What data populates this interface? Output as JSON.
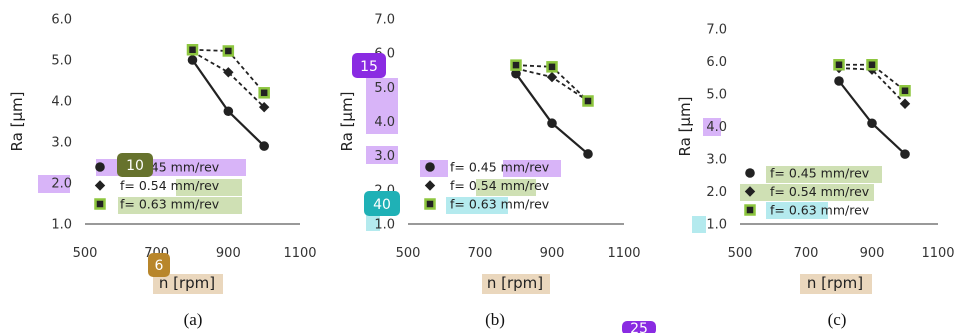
{
  "colors": {
    "series_line": "#222222",
    "marker_fill": "#222222",
    "square_outline": "#8dc63f",
    "axis": "#333333",
    "highlight_purple": "#d8b4f8",
    "highlight_olive": "#cfe0b4",
    "highlight_tan": "#ead7bd",
    "highlight_cyan": "#b4eaee",
    "badge_purple": "#8a2be2",
    "badge_olive": "#66722d",
    "badge_tan": "#b8862b",
    "badge_teal": "#1fb1b6"
  },
  "panel_labels": [
    "(a)",
    "(b)",
    "(c)"
  ],
  "badges": [
    "10",
    "6",
    "15",
    "40",
    "25"
  ],
  "chart_data": [
    {
      "type": "line",
      "panel": "(a)",
      "xlabel": "n [rpm]",
      "ylabel": "Ra [µm]",
      "xlim": [
        500,
        1100
      ],
      "ylim": [
        1.0,
        6.0
      ],
      "xticks": [
        "500",
        "700",
        "900",
        "1100"
      ],
      "yticks": [
        "1.0",
        "2.0",
        "3.0",
        "4.0",
        "5.0",
        "6.0"
      ],
      "grid": false,
      "legend_position": "bottom-left",
      "series": [
        {
          "name": "f= 0.45 mm/rev",
          "marker": "circle",
          "line": "solid",
          "x": [
            800,
            900,
            1000
          ],
          "y": [
            5.0,
            3.75,
            2.9
          ]
        },
        {
          "name": "f= 0.54 mm/rev",
          "marker": "diamond",
          "line": "dashed",
          "x": [
            800,
            900,
            1000
          ],
          "y": [
            5.2,
            4.7,
            3.85
          ]
        },
        {
          "name": "f= 0.63 mm/rev",
          "marker": "square",
          "line": "dashed",
          "x": [
            800,
            900,
            1000
          ],
          "y": [
            5.25,
            5.22,
            4.2
          ]
        }
      ]
    },
    {
      "type": "line",
      "panel": "(b)",
      "xlabel": "n [rpm]",
      "ylabel": "Ra [µm]",
      "xlim": [
        500,
        1100
      ],
      "ylim": [
        1.0,
        7.0
      ],
      "xticks": [
        "500",
        "700",
        "900",
        "1100"
      ],
      "yticks": [
        "1.0",
        "2.0",
        "3.0",
        "4.0",
        "5.0",
        "6.0",
        "7.0"
      ],
      "grid": false,
      "legend_position": "bottom-left",
      "series": [
        {
          "name": "f= 0.45 mm/rev",
          "marker": "circle",
          "line": "solid",
          "x": [
            800,
            900,
            1000
          ],
          "y": [
            5.4,
            3.95,
            3.05
          ]
        },
        {
          "name": "f= 0.54 mm/rev",
          "marker": "diamond",
          "line": "dashed",
          "x": [
            800,
            900,
            1000
          ],
          "y": [
            5.55,
            5.3,
            4.6
          ]
        },
        {
          "name": "f= 0.63 mm/rev",
          "marker": "square",
          "line": "dashed",
          "x": [
            800,
            900,
            1000
          ],
          "y": [
            5.65,
            5.6,
            4.6
          ]
        }
      ]
    },
    {
      "type": "line",
      "panel": "(c)",
      "xlabel": "n [rpm]",
      "ylabel": "Ra [µm]",
      "xlim": [
        500,
        1100
      ],
      "ylim": [
        1.0,
        7.0
      ],
      "xticks": [
        "500",
        "700",
        "900",
        "1100"
      ],
      "yticks": [
        "1.0",
        "2.0",
        "3.0",
        "4.0",
        "5.0",
        "6.0",
        "7.0"
      ],
      "grid": false,
      "legend_position": "bottom-left",
      "series": [
        {
          "name": "f= 0.45 mm/rev",
          "marker": "circle",
          "line": "solid",
          "x": [
            800,
            900,
            1000
          ],
          "y": [
            5.4,
            4.1,
            3.15
          ]
        },
        {
          "name": "f= 0.54 mm/rev",
          "marker": "diamond",
          "line": "dashed",
          "x": [
            800,
            900,
            1000
          ],
          "y": [
            5.8,
            5.75,
            4.7
          ]
        },
        {
          "name": "f= 0.63 mm/rev",
          "marker": "square",
          "line": "dashed",
          "x": [
            800,
            900,
            1000
          ],
          "y": [
            5.9,
            5.9,
            5.1
          ]
        }
      ]
    }
  ]
}
